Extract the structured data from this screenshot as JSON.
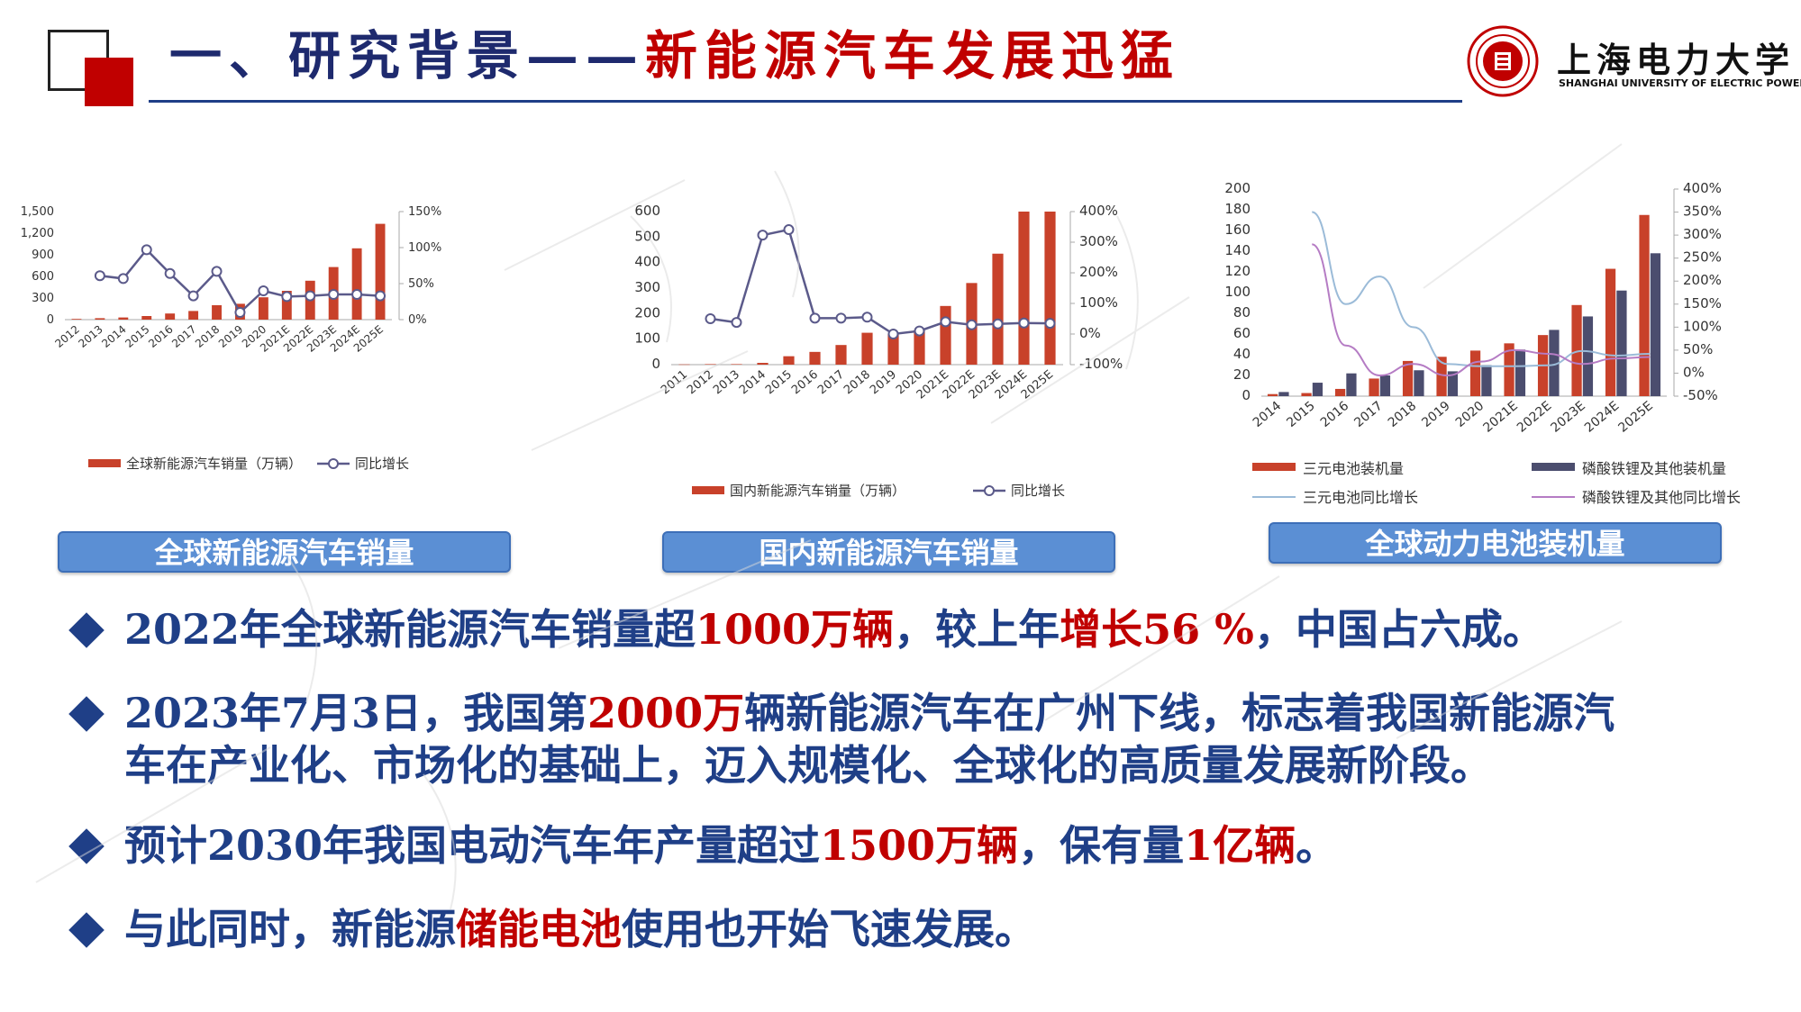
{
  "header": {
    "title_part1": "一、研究背景——",
    "title_part2": "新能源汽车发展迅猛"
  },
  "logo": {
    "name_cn": "上海电力大学",
    "name_en": "SHANGHAI UNIVERSITY OF ELECTRIC POWER",
    "emblem_icon": "university-seal-icon"
  },
  "colors": {
    "navy": "#1f3f87",
    "red": "#c00000",
    "bar_red": "#c8412a",
    "bar_navy": "#4b4d6e",
    "line_purple": "#5b5a8a",
    "line_lightblue": "#9bbbd8",
    "line_lavender": "#b57cc4",
    "caption_blue": "#5b8fd4"
  },
  "captions": {
    "global_sales": "全球新能源汽车销量",
    "domestic_sales": "国内新能源汽车销量",
    "battery": "全球动力电池装机量"
  },
  "bullets": [
    {
      "parts": [
        {
          "text": "2022年全球新能源汽车销量超",
          "hl": false
        },
        {
          "text": "1000万辆",
          "hl": true
        },
        {
          "text": "，较上年",
          "hl": false
        },
        {
          "text": "增长56 %",
          "hl": true
        },
        {
          "text": "，中国占六成。",
          "hl": false
        }
      ]
    },
    {
      "parts": [
        {
          "text": "2023年7月3日，我国第",
          "hl": false
        },
        {
          "text": "2000万",
          "hl": true
        },
        {
          "text": "辆新能源汽车在广州下线，标志着我国新能源汽",
          "hl": false
        }
      ],
      "continuation": "车在产业化、市场化的基础上，迈入规模化、全球化的高质量发展新阶段。"
    },
    {
      "parts": [
        {
          "text": "预计2030年我国电动汽车年产量超过",
          "hl": false
        },
        {
          "text": "1500万辆",
          "hl": true
        },
        {
          "text": "，保有量",
          "hl": false
        },
        {
          "text": "1亿辆",
          "hl": true
        },
        {
          "text": "。",
          "hl": false
        }
      ]
    },
    {
      "parts": [
        {
          "text": "与此同时，新能源",
          "hl": false
        },
        {
          "text": "储能电池",
          "hl": true
        },
        {
          "text": "使用也开始飞速发展。",
          "hl": false
        }
      ]
    }
  ],
  "chart_data": [
    {
      "type": "bar",
      "id": "global",
      "categories": [
        "2012",
        "2013",
        "2014",
        "2015",
        "2016",
        "2017",
        "2018",
        "2019",
        "2020",
        "2021E",
        "2022E",
        "2023E",
        "2024E",
        "2025E"
      ],
      "series": [
        {
          "name": "全球新能源汽车销量（万辆）",
          "kind": "bar",
          "axis": "left",
          "values": [
            10,
            20,
            30,
            50,
            85,
            120,
            200,
            220,
            310,
            400,
            540,
            730,
            990,
            1330
          ]
        },
        {
          "name": "同比增长",
          "kind": "line",
          "axis": "right",
          "values": [
            null,
            61,
            57,
            97,
            64,
            33,
            67,
            10,
            40,
            32,
            33,
            35,
            35,
            33
          ]
        }
      ],
      "yticks_left": [
        "0",
        "300",
        "600",
        "900",
        "1,200",
        "1,500"
      ],
      "ylim_left": [
        0,
        1500
      ],
      "yticks_right": [
        "0%",
        "50%",
        "100%",
        "150%"
      ],
      "ylim_right": [
        0,
        150
      ]
    },
    {
      "type": "bar",
      "id": "domestic",
      "categories": [
        "2011",
        "2012",
        "2013",
        "2014",
        "2015",
        "2016",
        "2017",
        "2018",
        "2019",
        "2020",
        "2021E",
        "2022E",
        "2023E",
        "2024E",
        "2025E"
      ],
      "series": [
        {
          "name": "国内新能源汽车销量（万辆）",
          "kind": "bar",
          "axis": "left",
          "values": [
            1,
            2,
            2,
            7,
            33,
            50,
            77,
            125,
            120,
            135,
            230,
            320,
            435,
            600,
            600
          ]
        },
        {
          "name": "同比增长",
          "kind": "line",
          "axis": "right",
          "values": [
            null,
            50,
            38,
            323,
            341,
            52,
            52,
            55,
            0,
            10,
            40,
            30,
            33,
            36,
            35
          ]
        }
      ],
      "yticks_left": [
        "0",
        "100",
        "200",
        "300",
        "400",
        "500",
        "600"
      ],
      "ylim_left": [
        0,
        600
      ],
      "yticks_right": [
        "-100%",
        "0%",
        "100%",
        "200%",
        "300%",
        "400%"
      ],
      "ylim_right": [
        -100,
        400
      ]
    },
    {
      "type": "bar",
      "id": "battery",
      "categories": [
        "2014",
        "2015",
        "2016",
        "2017",
        "2018",
        "2019",
        "2020",
        "2021E",
        "2022E",
        "2023E",
        "2024E",
        "2025E"
      ],
      "series": [
        {
          "name": "三元电池装机量",
          "kind": "bar",
          "axis": "left",
          "values": [
            2,
            3,
            7,
            17,
            34,
            38,
            44,
            51,
            59,
            88,
            123,
            175
          ]
        },
        {
          "name": "磷酸铁锂及其他装机量",
          "kind": "bar",
          "axis": "left",
          "values": [
            4,
            13,
            22,
            20,
            25,
            24,
            30,
            45,
            64,
            77,
            102,
            138
          ]
        },
        {
          "name": "三元电池同比增长",
          "kind": "line",
          "axis": "right",
          "values": [
            null,
            350,
            150,
            210,
            100,
            20,
            15,
            15,
            17,
            48,
            38,
            42
          ]
        },
        {
          "name": "磷酸铁锂及其他同比增长",
          "kind": "line",
          "axis": "right",
          "values": [
            null,
            280,
            60,
            -5,
            20,
            -5,
            25,
            50,
            42,
            20,
            32,
            35
          ]
        }
      ],
      "yticks_left": [
        "0",
        "20",
        "40",
        "60",
        "80",
        "100",
        "120",
        "140",
        "160",
        "180",
        "200"
      ],
      "ylim_left": [
        0,
        200
      ],
      "yticks_right": [
        "-50%",
        "0%",
        "50%",
        "100%",
        "150%",
        "200%",
        "250%",
        "300%",
        "350%",
        "400%"
      ],
      "ylim_right": [
        -50,
        400
      ]
    }
  ]
}
